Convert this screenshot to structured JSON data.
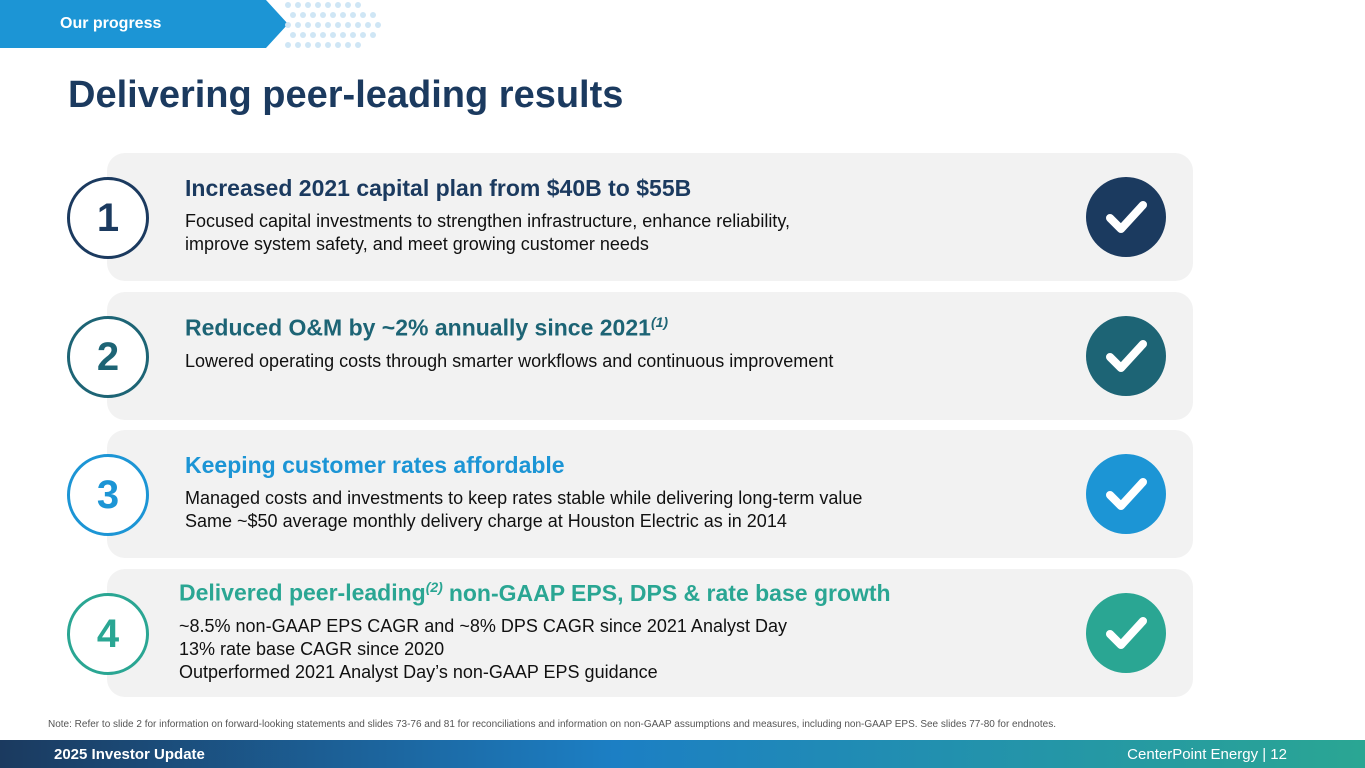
{
  "header": {
    "tag": "Our progress",
    "title": "Delivering peer-leading results"
  },
  "items": [
    {
      "number": 1,
      "color": "#1b3a5f",
      "heading": "Increased 2021 capital plan from $40B to $55B",
      "lines": [
        "Focused capital investments to strengthen infrastructure, enhance reliability,",
        "improve system safety, and meet growing customer needs"
      ]
    },
    {
      "number": 2,
      "color": "#1d6475",
      "heading": "Reduced O&M by ~2% annually since 2021",
      "heading_note": "(1)",
      "lines": [
        "Lowered operating costs through smarter workflows and continuous improvement"
      ]
    },
    {
      "number": 3,
      "color": "#1c95d5",
      "heading": "Keeping customer rates affordable",
      "lines": [
        "Managed costs and investments to keep rates stable while delivering long-term value",
        "Same ~$50 average monthly delivery charge at Houston Electric as in 2014"
      ]
    },
    {
      "number": 4,
      "color": "#2aa693",
      "heading": "Delivered peer-leading",
      "heading_note": "(2)",
      "heading_rest": "non-GAAP EPS, DPS & rate base growth",
      "lines": [
        "~8.5% non-GAAP EPS CAGR and ~8% DPS CAGR since 2021 Analyst Day",
        "13% rate base CAGR since 2020",
        "Outperformed 2021 Analyst Day’s non-GAAP EPS guidance"
      ]
    }
  ],
  "footer": {
    "note": "Note: Refer to slide 2 for information on forward-looking statements and slides 73-76 and 81 for reconciliations and information on non-GAAP assumptions and measures, including non-GAAP EPS.  See slides 77-80 for endnotes.",
    "left": "2025 Investor Update",
    "right": "CenterPoint Energy | 12"
  }
}
